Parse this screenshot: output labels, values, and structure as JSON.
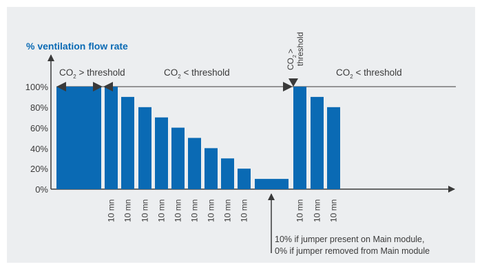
{
  "chart_data": {
    "type": "bar",
    "ylabel": "% ventilation flow rate",
    "yticks": [
      "100%",
      "80%",
      "60%",
      "40%",
      "20%",
      "0%"
    ],
    "ylim": [
      0,
      100
    ],
    "bars": [
      {
        "label": "",
        "value": 100
      },
      {
        "label": "10 mn",
        "value": 100
      },
      {
        "label": "10 mn",
        "value": 90
      },
      {
        "label": "10 mn",
        "value": 80
      },
      {
        "label": "10 mn",
        "value": 70
      },
      {
        "label": "10 mn",
        "value": 60
      },
      {
        "label": "10 mn",
        "value": 50
      },
      {
        "label": "10 mn",
        "value": 40
      },
      {
        "label": "10 mn",
        "value": 30
      },
      {
        "label": "10 mn",
        "value": 20
      },
      {
        "label": "",
        "value": 10
      },
      {
        "label": "10 mn",
        "value": 100
      },
      {
        "label": "10 mn",
        "value": 90
      },
      {
        "label": "10 mn",
        "value": 80
      }
    ],
    "phases": {
      "p1_pre": "CO",
      "p1_sub": "2",
      "p1_post": " > threshold",
      "p2_pre": "CO",
      "p2_sub": "2",
      "p2_post": " < threshold",
      "p3_co": "CO",
      "p3_sub": "2",
      "p3_gt": ">",
      "p3_thr": "threshold",
      "p4_pre": "CO",
      "p4_sub": "2",
      "p4_post": " < threshold"
    },
    "annotation": {
      "line1": "10% if jumper present on Main module,",
      "line2": "0% if jumper removed from Main module"
    },
    "colors": {
      "bar": "#0a6ab4",
      "ylabel": "#0a6ab4",
      "axis": "#3a3a3a",
      "text": "#3a3a3a",
      "panel": "#eceef0"
    }
  }
}
